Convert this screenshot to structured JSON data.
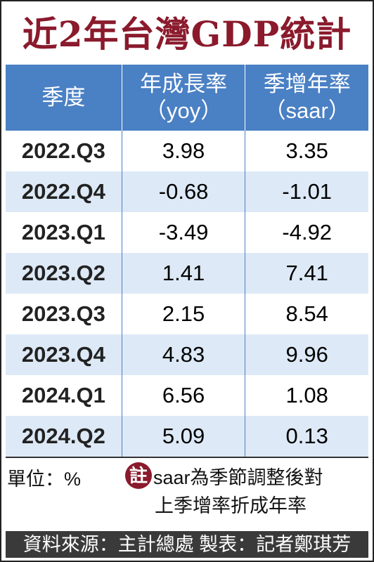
{
  "header": {
    "title": "近2年台灣GDP統計"
  },
  "table": {
    "columns": [
      [
        "季度"
      ],
      [
        "年成長率",
        "（yoy）"
      ],
      [
        "季增年率",
        "（saar）"
      ]
    ],
    "rows": [
      [
        "2022.Q3",
        "3.98",
        "3.35"
      ],
      [
        "2022.Q4",
        "-0.68",
        "-1.01"
      ],
      [
        "2023.Q1",
        "-3.49",
        "-4.92"
      ],
      [
        "2023.Q2",
        "1.41",
        "7.41"
      ],
      [
        "2023.Q3",
        "2.15",
        "8.54"
      ],
      [
        "2023.Q4",
        "4.83",
        "9.96"
      ],
      [
        "2024.Q1",
        "6.56",
        "1.08"
      ],
      [
        "2024.Q2",
        "5.09",
        "0.13"
      ]
    ]
  },
  "footer": {
    "unit": "單位：%",
    "note_marker": "註",
    "note_lines": [
      "saar為季節調整後對",
      "上季增率折成年率"
    ],
    "source": "資料來源：主計總處 製表：記者鄭琪芳"
  }
}
